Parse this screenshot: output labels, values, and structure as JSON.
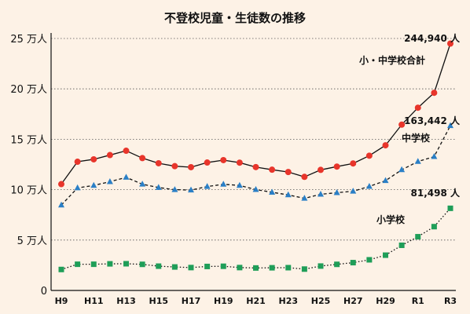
{
  "chart_data": {
    "type": "line",
    "title": "不登校児童・生徒数の推移",
    "ytick_labels": [
      "0",
      "5 万人",
      "10 万人",
      "15 万人",
      "20 万人",
      "25 万人"
    ],
    "yticks": [
      0,
      50000,
      100000,
      150000,
      200000,
      250000
    ],
    "ylim": [
      0,
      250000
    ],
    "xtick_labels": [
      "H9",
      "H11",
      "H13",
      "H15",
      "H17",
      "H19",
      "H21",
      "H23",
      "H25",
      "H27",
      "H29",
      "R1",
      "R3"
    ],
    "x": [
      "H9",
      "H10",
      "H11",
      "H12",
      "H13",
      "H14",
      "H15",
      "H16",
      "H17",
      "H18",
      "H19",
      "H20",
      "H21",
      "H22",
      "H23",
      "H24",
      "H25",
      "H26",
      "H27",
      "H28",
      "H29",
      "H30",
      "R1",
      "R2",
      "R3"
    ],
    "grid": true,
    "series": [
      {
        "name": "小・中学校合計",
        "color": "#e8352b",
        "marker": "circle",
        "line": "solid",
        "values": [
          105500,
          127700,
          130100,
          134300,
          138600,
          131300,
          126200,
          123300,
          122300,
          126900,
          129300,
          126800,
          122400,
          119800,
          117500,
          112700,
          119600,
          122900,
          126000,
          133700,
          144000,
          164500,
          181300,
          196100,
          244940
        ]
      },
      {
        "name": "中学校",
        "color": "#2a7fc6",
        "marker": "triangle",
        "line": "dashed",
        "values": [
          84700,
          101700,
          104200,
          107900,
          112200,
          105400,
          102100,
          100000,
          99600,
          103100,
          105300,
          104200,
          100100,
          97400,
          94800,
          91400,
          95400,
          97000,
          98400,
          103200,
          108900,
          119700,
          127900,
          132800,
          163442
        ]
      },
      {
        "name": "小学校",
        "color": "#1f9e58",
        "marker": "square",
        "line": "dotted",
        "values": [
          20800,
          26000,
          26000,
          26400,
          26500,
          25900,
          24100,
          23300,
          22700,
          23800,
          24000,
          22700,
          22300,
          22500,
          22600,
          21200,
          24200,
          25900,
          27600,
          30400,
          35000,
          44800,
          53300,
          63300,
          81498
        ]
      }
    ],
    "annotations": [
      {
        "text": "244,940 人",
        "series": 0
      },
      {
        "text": "163,442 人",
        "series": 1
      },
      {
        "text": "81,498 人",
        "series": 2
      }
    ]
  }
}
